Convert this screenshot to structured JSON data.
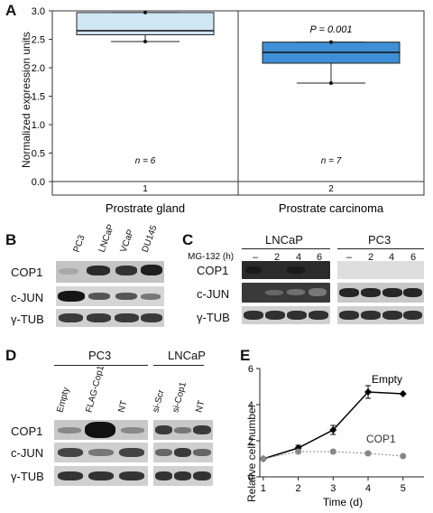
{
  "panelA": {
    "label": "A",
    "chart_data": {
      "type": "box",
      "ylabel": "Normalized expression units",
      "ylim": [
        0,
        3.0
      ],
      "yticks": [
        "0.0",
        "0.5",
        "1.0",
        "1.5",
        "2.0",
        "2.5",
        "3.0"
      ],
      "categories": [
        "1",
        "2"
      ],
      "category_names": [
        "Prostrate gland",
        "Prostrate carcinoma"
      ],
      "boxes": [
        {
          "q1": 2.58,
          "median": 2.65,
          "q3": 2.97,
          "whisker_low": 2.46,
          "whisker_high": 2.97,
          "n": "n = 6",
          "color": "#cfe6f5"
        },
        {
          "q1": 2.08,
          "median": 2.27,
          "q3": 2.45,
          "whisker_low": 1.73,
          "whisker_high": 2.45,
          "n": "n = 7",
          "color": "#3f8fd6"
        }
      ],
      "annotation": "P = 0.001"
    }
  },
  "panelB": {
    "label": "B",
    "lanes": [
      "PC3",
      "LNCaP",
      "VCaP",
      "DU145"
    ],
    "rows": [
      "COP1",
      "c-JUN",
      "γ-TUB"
    ]
  },
  "panelC": {
    "label": "C",
    "groups": [
      "LNCaP",
      "PC3"
    ],
    "treatment_label": "MG-132 (h)",
    "timepoints": [
      "–",
      "2",
      "4",
      "6",
      "–",
      "2",
      "4",
      "6"
    ],
    "rows": [
      "COP1",
      "c-JUN",
      "γ-TUB"
    ]
  },
  "panelD": {
    "label": "D",
    "groups": [
      "PC3",
      "LNCaP"
    ],
    "lanes": [
      "Empty",
      "FLAG-Cop1",
      "NT",
      "si-Scr",
      "si-Cop1",
      "NT"
    ],
    "rows": [
      "COP1",
      "c-JUN",
      "γ-TUB"
    ]
  },
  "panelE": {
    "label": "E",
    "chart_data": {
      "type": "line",
      "xlabel": "Time (d)",
      "ylabel": "Relative cell number",
      "x": [
        1,
        2,
        3,
        4,
        5
      ],
      "ylim": [
        0,
        6
      ],
      "yticks": [
        "0",
        "2",
        "4",
        "6"
      ],
      "series": [
        {
          "name": "Empty",
          "values": [
            1.0,
            1.6,
            2.6,
            4.7,
            4.6
          ],
          "errors": [
            0,
            0.15,
            0.25,
            0.35,
            0
          ],
          "color": "#000000"
        },
        {
          "name": "COP1",
          "values": [
            1.0,
            1.4,
            1.4,
            1.3,
            1.15
          ],
          "errors": [
            0,
            0.1,
            0.1,
            0.1,
            0
          ],
          "color": "#888888"
        }
      ]
    }
  }
}
